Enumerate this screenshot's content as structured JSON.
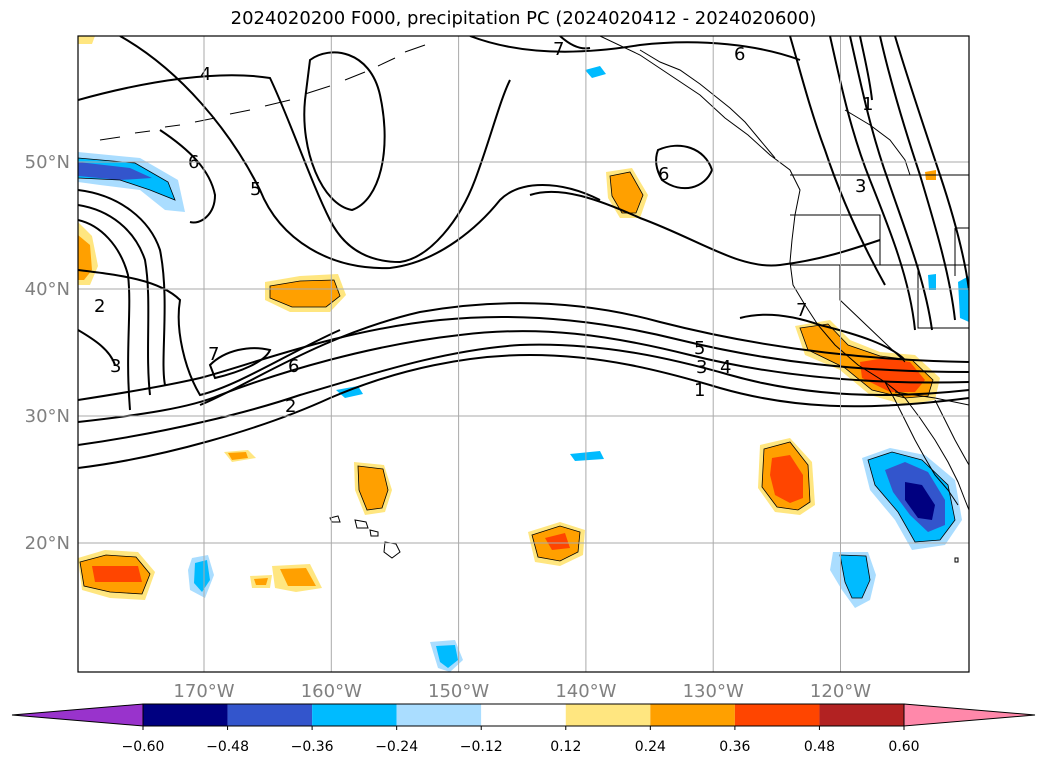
{
  "title": "2024020200 F000, precipitation PC (2024020412 - 2024020600)",
  "lat_labels": [
    {
      "text": "50°N",
      "lat": 50
    },
    {
      "text": "40°N",
      "lat": 40
    },
    {
      "text": "30°N",
      "lat": 30
    },
    {
      "text": "20°N",
      "lat": 20
    }
  ],
  "lon_labels": [
    {
      "text": "170°W",
      "lon": -170
    },
    {
      "text": "160°W",
      "lon": -160
    },
    {
      "text": "150°W",
      "lon": -150
    },
    {
      "text": "140°W",
      "lon": -140
    },
    {
      "text": "130°W",
      "lon": -130
    },
    {
      "text": "120°W",
      "lon": -120
    }
  ],
  "colorbar": {
    "labels": [
      "−0.60",
      "−0.48",
      "−0.36",
      "−0.24",
      "−0.12",
      "0.12",
      "0.24",
      "0.36",
      "0.48",
      "0.60"
    ],
    "colors": [
      "#9933cc",
      "#000080",
      "#3355cc",
      "#00bbff",
      "#aaddff",
      "#ffffff",
      "#ffe680",
      "#ffa000",
      "#ff4500",
      "#b22222",
      "#ff88aa"
    ]
  },
  "contour_labels": [
    "1",
    "2",
    "3",
    "4",
    "5",
    "6",
    "7"
  ]
}
